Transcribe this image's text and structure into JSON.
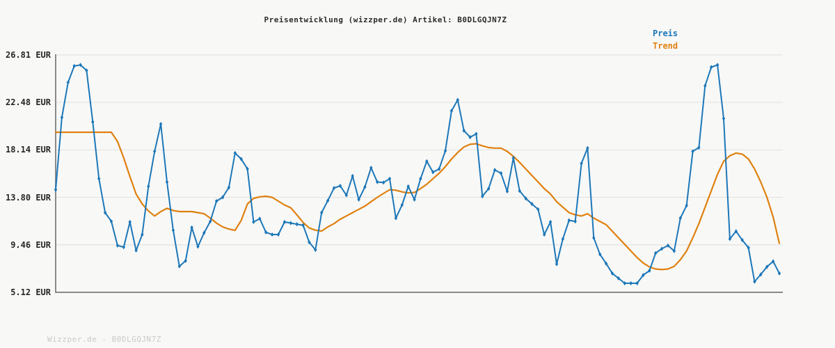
{
  "title": "Preisentwicklung (wizzper.de) Artikel: B0DLGQJN7Z",
  "legend": [
    {
      "label": "Preis",
      "color": "#1c77b8"
    },
    {
      "label": "Trend",
      "color": "#df800e"
    }
  ],
  "footer": {
    "text": "Wizzper.de - B0DLGQJN7Z"
  },
  "colors": {
    "price_line": "#1c77b8",
    "trend_line": "#df800e",
    "gridline": "#e3e3e2",
    "spine": "#8a8a8a",
    "background": "#f8f8f7",
    "title_text": "#2b2b2b",
    "tick_text": "#262626",
    "footer_text": "#c9c9c9"
  },
  "y_axis": {
    "unit": "EUR",
    "ticks": [
      {
        "label": "26.81 EUR",
        "value": 26.81
      },
      {
        "label": "22.48 EUR",
        "value": 22.48
      },
      {
        "label": "18.14 EUR",
        "value": 18.14
      },
      {
        "label": "13.80 EUR",
        "value": 13.8
      },
      {
        "label": "9.46 EUR",
        "value": 9.46
      },
      {
        "label": "5.12 EUR",
        "value": 5.12
      }
    ]
  },
  "chart_data": {
    "type": "line",
    "title": "Preisentwicklung (wizzper.de) Artikel: B0DLGQJN7Z",
    "xlabel": "",
    "ylabel": "EUR",
    "ylim": [
      5.12,
      26.81
    ],
    "y_ticks": [
      26.81,
      22.48,
      18.14,
      13.8,
      9.46,
      5.12
    ],
    "x_tick_labels_visible": false,
    "grid": true,
    "legend_position": "top-right",
    "series": [
      {
        "name": "Preis",
        "color": "#1c77b8",
        "marker": "thin-diamond",
        "values": [
          14.5,
          21.1,
          24.3,
          25.8,
          25.9,
          25.4,
          20.7,
          15.5,
          12.4,
          11.6,
          9.4,
          9.25,
          11.55,
          8.95,
          10.4,
          14.8,
          18.0,
          20.5,
          15.2,
          10.8,
          7.5,
          8.0,
          11.05,
          9.3,
          10.55,
          11.6,
          13.45,
          13.8,
          14.7,
          17.85,
          17.3,
          16.4,
          11.55,
          11.85,
          10.6,
          10.4,
          10.4,
          11.55,
          11.45,
          11.35,
          11.25,
          9.7,
          9.0,
          12.4,
          13.5,
          14.65,
          14.85,
          14.0,
          15.75,
          13.6,
          14.75,
          16.5,
          15.2,
          15.15,
          15.5,
          11.9,
          13.1,
          14.8,
          13.6,
          15.5,
          17.1,
          16.1,
          16.4,
          18.05,
          21.7,
          22.7,
          19.9,
          19.3,
          19.6,
          13.9,
          14.6,
          16.3,
          16.0,
          14.35,
          17.4,
          14.4,
          13.7,
          13.2,
          12.7,
          10.4,
          11.55,
          7.7,
          10.0,
          11.7,
          11.6,
          16.9,
          18.3,
          10.1,
          8.6,
          7.75,
          6.85,
          6.4,
          5.95,
          5.95,
          5.95,
          6.7,
          7.1,
          8.7,
          9.1,
          9.4,
          8.9,
          11.9,
          13.05,
          18.0,
          18.35,
          24.0,
          25.7,
          25.9,
          21.0,
          10.0,
          10.7,
          9.9,
          9.2,
          6.1,
          6.75,
          7.45,
          7.95,
          6.85
        ]
      },
      {
        "name": "Trend",
        "color": "#df800e",
        "marker": "none",
        "values": [
          19.75,
          19.75,
          19.75,
          19.75,
          19.75,
          19.75,
          19.75,
          19.75,
          19.75,
          19.75,
          18.9,
          17.4,
          15.7,
          14.1,
          13.2,
          12.55,
          12.1,
          12.5,
          12.8,
          12.6,
          12.5,
          12.5,
          12.5,
          12.4,
          12.3,
          11.9,
          11.45,
          11.1,
          10.9,
          10.78,
          11.7,
          13.2,
          13.7,
          13.85,
          13.9,
          13.8,
          13.45,
          13.1,
          12.85,
          12.2,
          11.5,
          11.0,
          10.8,
          10.72,
          11.1,
          11.4,
          11.8,
          12.1,
          12.4,
          12.7,
          13.0,
          13.4,
          13.8,
          14.15,
          14.5,
          14.45,
          14.3,
          14.2,
          14.25,
          14.6,
          15.0,
          15.5,
          16.0,
          16.6,
          17.3,
          17.9,
          18.4,
          18.65,
          18.7,
          18.5,
          18.35,
          18.3,
          18.3,
          18.0,
          17.55,
          17.0,
          16.4,
          15.8,
          15.2,
          14.6,
          14.1,
          13.4,
          12.9,
          12.4,
          12.2,
          12.1,
          12.3,
          11.9,
          11.6,
          11.3,
          10.7,
          10.1,
          9.5,
          8.9,
          8.3,
          7.8,
          7.45,
          7.25,
          7.2,
          7.25,
          7.5,
          8.1,
          8.9,
          10.1,
          11.4,
          12.9,
          14.4,
          15.9,
          17.1,
          17.6,
          17.85,
          17.75,
          17.3,
          16.4,
          15.2,
          13.8,
          12.0,
          9.6
        ]
      }
    ]
  }
}
